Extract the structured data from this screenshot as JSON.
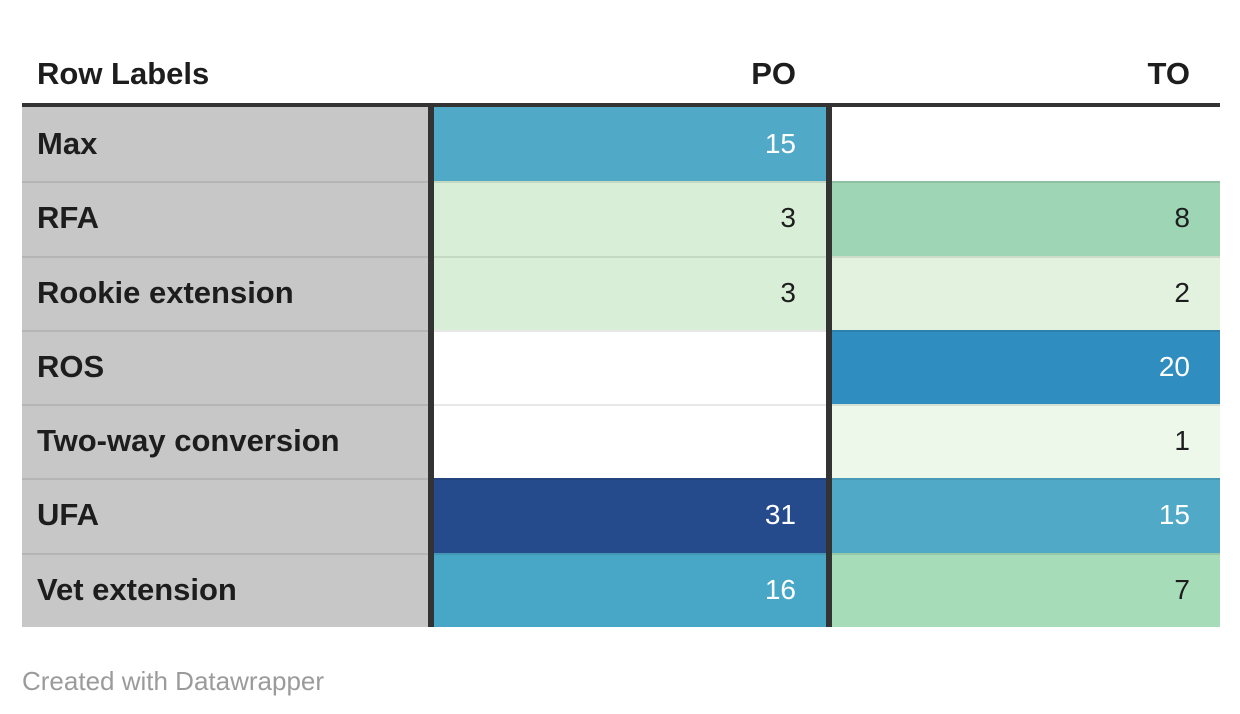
{
  "header": {
    "row_labels": "Row Labels",
    "po": "PO",
    "to": "TO"
  },
  "rows": [
    {
      "label": "Max",
      "po": {
        "text": "15",
        "bg": "#4fa9c7",
        "fg": "#ffffff"
      },
      "to": {
        "text": "",
        "bg": "#ffffff",
        "fg": "#1d1d1d"
      }
    },
    {
      "label": "RFA",
      "po": {
        "text": "3",
        "bg": "#d8eed6",
        "fg": "#1d1d1d"
      },
      "to": {
        "text": "8",
        "bg": "#9dd5b5",
        "fg": "#1d1d1d"
      }
    },
    {
      "label": "Rookie extension",
      "po": {
        "text": "3",
        "bg": "#d8eed6",
        "fg": "#1d1d1d"
      },
      "to": {
        "text": "2",
        "bg": "#e2f2df",
        "fg": "#1d1d1d"
      }
    },
    {
      "label": "ROS",
      "po": {
        "text": "",
        "bg": "#ffffff",
        "fg": "#1d1d1d"
      },
      "to": {
        "text": "20",
        "bg": "#308dc0",
        "fg": "#ffffff"
      }
    },
    {
      "label": "Two-way conversion",
      "po": {
        "text": "",
        "bg": "#ffffff",
        "fg": "#1d1d1d"
      },
      "to": {
        "text": "1",
        "bg": "#edf7ea",
        "fg": "#1d1d1d"
      }
    },
    {
      "label": "UFA",
      "po": {
        "text": "31",
        "bg": "#254b8c",
        "fg": "#ffffff"
      },
      "to": {
        "text": "15",
        "bg": "#4fa9c7",
        "fg": "#ffffff"
      }
    },
    {
      "label": "Vet extension",
      "po": {
        "text": "16",
        "bg": "#48a7c6",
        "fg": "#ffffff"
      },
      "to": {
        "text": "7",
        "bg": "#a6dcb8",
        "fg": "#1d1d1d"
      }
    }
  ],
  "footer": {
    "credit": "Created with Datawrapper"
  },
  "colors": {
    "label_column_bg": "#c7c7c7",
    "separator": "#333333",
    "header_border": "#333333",
    "dark_text": "#1d1d1d",
    "light_text": "#ffffff",
    "footer_text": "#9b9b9b",
    "scale_low": "#edf7ea",
    "scale_high": "#254b8c"
  },
  "chart_data": {
    "type": "table",
    "title": "",
    "columns": [
      "Row Labels",
      "PO",
      "TO"
    ],
    "categories": [
      "Max",
      "RFA",
      "Rookie extension",
      "ROS",
      "Two-way conversion",
      "UFA",
      "Vet extension"
    ],
    "series": [
      {
        "name": "PO",
        "values": [
          15,
          3,
          3,
          null,
          null,
          31,
          16
        ]
      },
      {
        "name": "TO",
        "values": [
          null,
          8,
          2,
          20,
          1,
          15,
          7
        ]
      }
    ],
    "heatmap": true,
    "legend_position": "none",
    "grid": false,
    "footer": "Created with Datawrapper"
  }
}
